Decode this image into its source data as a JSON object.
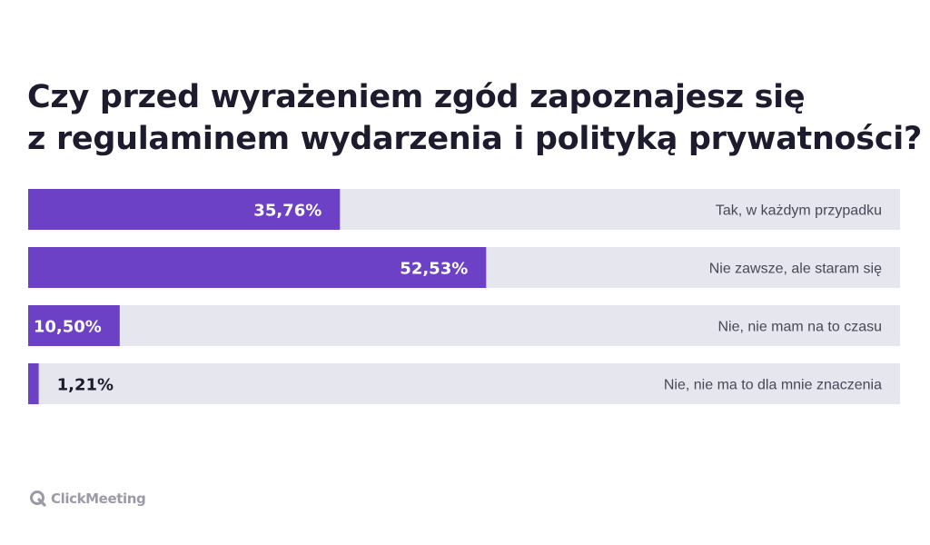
{
  "header": {
    "title_line1": "Czy przed wyrażeniem zgód zapoznajesz się",
    "title_line2": "z regulaminem wydarzenia i polityką prywatności?"
  },
  "chart_data": {
    "type": "bar",
    "orientation": "horizontal",
    "categories": [
      "Tak, w każdym przypadku",
      "Nie zawsze, ale staram się",
      "Nie, nie mam na to czasu",
      "Nie, nie ma to dla mnie znaczenia"
    ],
    "values": [
      35.76,
      52.53,
      10.5,
      1.21
    ],
    "value_labels": [
      "35,76%",
      "52,53%",
      "10,50%",
      "1,21%"
    ],
    "xlim": [
      0,
      100
    ],
    "grid": false,
    "legend": "none"
  },
  "colors": {
    "bar": "#6c41c6",
    "track": "#e5e6ee",
    "title": "#1d1b2e",
    "category_text": "#4a4858",
    "label_inside": "#ffffff",
    "label_outside": "#1d1b2e"
  },
  "brand": {
    "logo_text": "ClickMeeting",
    "logo_icon": "clickmeeting-q-icon"
  }
}
